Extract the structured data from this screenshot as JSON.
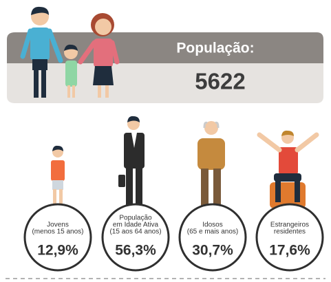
{
  "header": {
    "title": "População:",
    "value": "5622"
  },
  "groups": [
    {
      "label": [
        "Jovens",
        "(menos 15 anos)"
      ],
      "value": "12,9%"
    },
    {
      "label": [
        "População",
        "em Idade Ativa",
        "(15 aos 64 anos)"
      ],
      "value": "56,3%"
    },
    {
      "label": [
        "Idosos",
        "(65 e mais anos)"
      ],
      "value": "30,7%"
    },
    {
      "label": [
        "Estrangeiros",
        "residentes"
      ],
      "value": "17,6%"
    }
  ]
}
